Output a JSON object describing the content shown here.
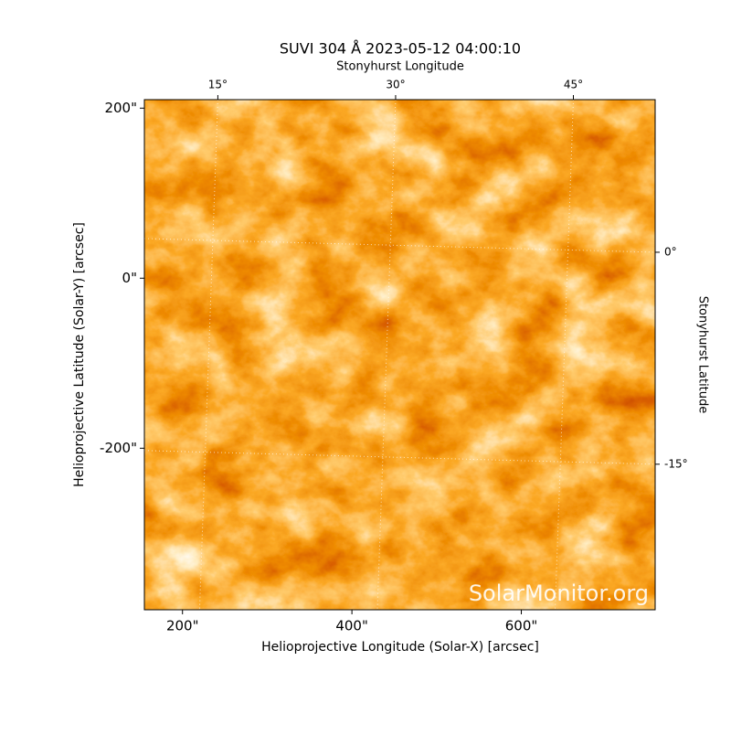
{
  "chart_data": {
    "type": "image",
    "title": "SUVI 304 Å 2023-05-12 04:00:10",
    "xlabel": "Helioprojective Longitude (Solar-X) [arcsec]",
    "ylabel": "Helioprojective Latitude (Solar-Y) [arcsec]",
    "x2label": "Stonyhurst Longitude",
    "y2label": "Stonyhurst Latitude",
    "watermark": "SolarMonitor.org",
    "xlim": [
      155,
      758
    ],
    "xticks": [
      {
        "value": 200,
        "label": "200\""
      },
      {
        "value": 400,
        "label": "400\""
      },
      {
        "value": 600,
        "label": "600\""
      }
    ],
    "ylim": [
      -390,
      210
    ],
    "yticks": [
      {
        "value": -200,
        "label": "-200\""
      },
      {
        "value": 0,
        "label": "0\""
      },
      {
        "value": 200,
        "label": "200\""
      }
    ],
    "x2lim": [
      8.8,
      51.9
    ],
    "x2ticks": [
      {
        "value": 15,
        "label": "15°"
      },
      {
        "value": 30,
        "label": "30°"
      },
      {
        "value": 45,
        "label": "45°"
      }
    ],
    "y2lim": [
      -25.3,
      10.8
    ],
    "y2ticks": [
      {
        "value": -15,
        "label": "-15°"
      },
      {
        "value": 0,
        "label": "0°"
      }
    ],
    "grid": true
  }
}
